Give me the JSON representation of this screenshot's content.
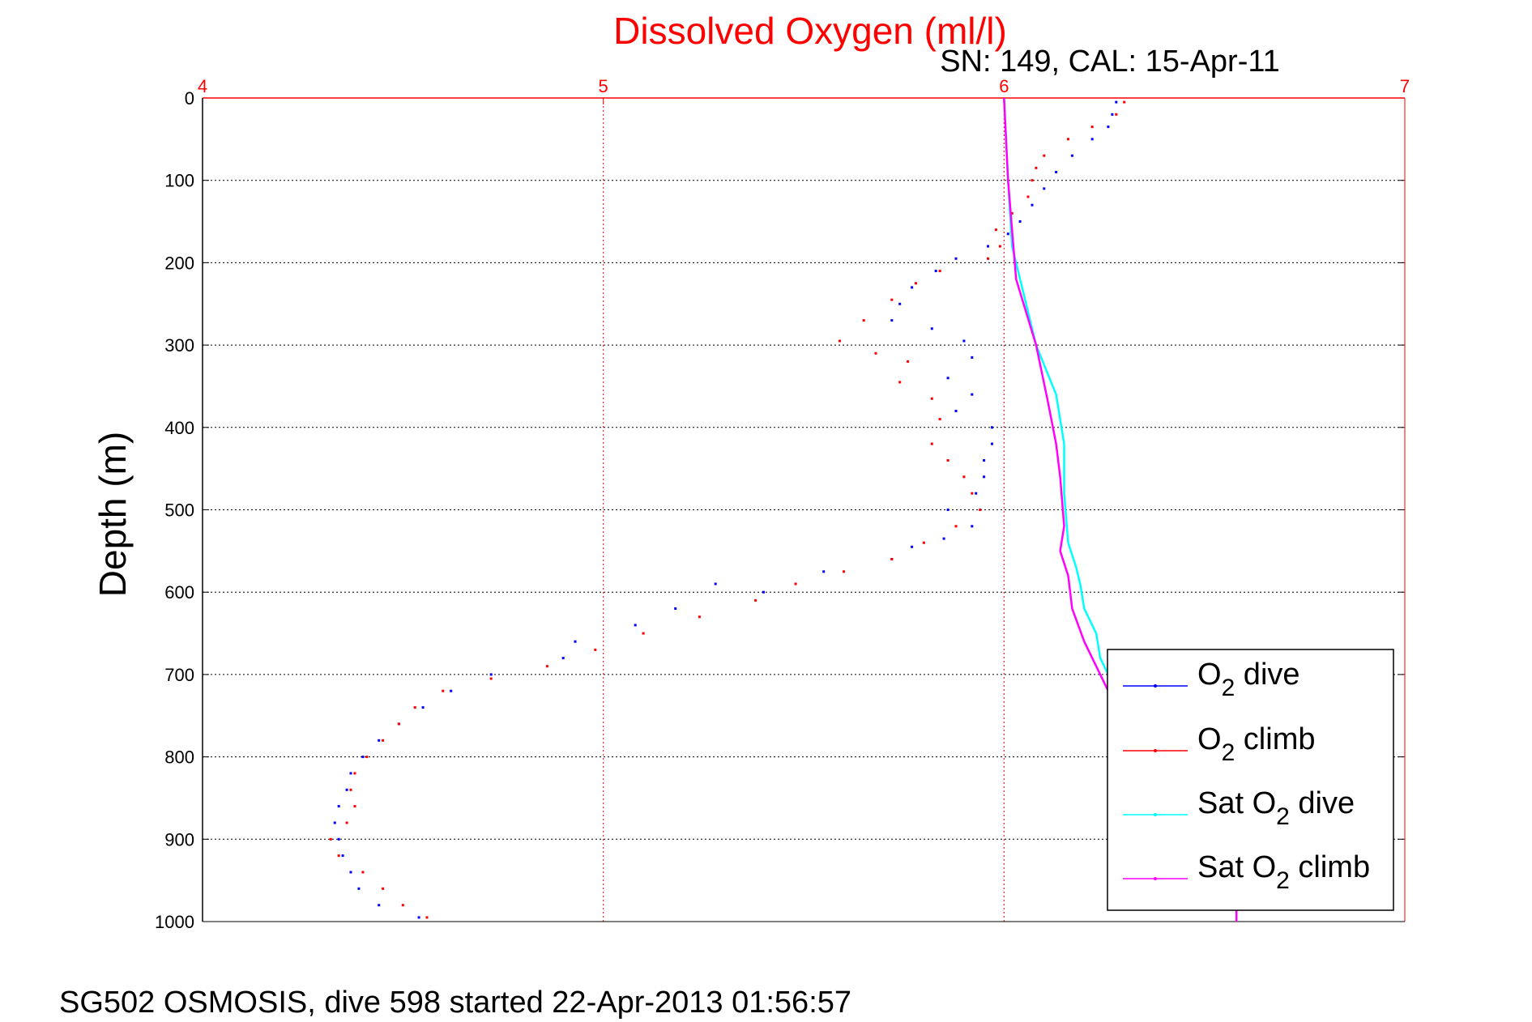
{
  "chart_data": {
    "type": "scatter",
    "title": "Dissolved Oxygen (ml/l)",
    "subtitle": "SN: 149, CAL: 15-Apr-11",
    "ylabel": "Depth (m)",
    "xlabel": "",
    "xlim": [
      4,
      7
    ],
    "ylim": [
      0,
      1000
    ],
    "y_reversed": true,
    "x_axis_position": "top",
    "grid": true,
    "legend_position": "bottom-right",
    "x_ticks": [
      "4",
      "5",
      "6",
      "7"
    ],
    "y_ticks": [
      "0",
      "100",
      "200",
      "300",
      "400",
      "500",
      "600",
      "700",
      "800",
      "900",
      "1000"
    ],
    "series": [
      {
        "name_main": "O",
        "name_sub": "2",
        "name_suffix": " dive",
        "color": "#0000ff",
        "style": "points",
        "points": [
          [
            6.28,
            5
          ],
          [
            6.27,
            20
          ],
          [
            6.26,
            35
          ],
          [
            6.22,
            50
          ],
          [
            6.17,
            70
          ],
          [
            6.13,
            90
          ],
          [
            6.1,
            110
          ],
          [
            6.07,
            130
          ],
          [
            6.04,
            150
          ],
          [
            6.01,
            165
          ],
          [
            5.96,
            180
          ],
          [
            5.88,
            195
          ],
          [
            5.83,
            210
          ],
          [
            5.77,
            230
          ],
          [
            5.74,
            250
          ],
          [
            5.72,
            270
          ],
          [
            5.82,
            280
          ],
          [
            5.9,
            295
          ],
          [
            5.92,
            315
          ],
          [
            5.86,
            340
          ],
          [
            5.92,
            360
          ],
          [
            5.88,
            380
          ],
          [
            5.97,
            400
          ],
          [
            5.97,
            420
          ],
          [
            5.95,
            440
          ],
          [
            5.95,
            460
          ],
          [
            5.93,
            480
          ],
          [
            5.86,
            500
          ],
          [
            5.92,
            520
          ],
          [
            5.85,
            535
          ],
          [
            5.77,
            545
          ],
          [
            5.72,
            560
          ],
          [
            5.55,
            575
          ],
          [
            5.28,
            590
          ],
          [
            5.4,
            600
          ],
          [
            5.18,
            620
          ],
          [
            5.08,
            640
          ],
          [
            4.93,
            660
          ],
          [
            4.9,
            680
          ],
          [
            4.72,
            700
          ],
          [
            4.62,
            720
          ],
          [
            4.55,
            740
          ],
          [
            4.49,
            760
          ],
          [
            4.44,
            780
          ],
          [
            4.4,
            800
          ],
          [
            4.37,
            820
          ],
          [
            4.36,
            840
          ],
          [
            4.34,
            860
          ],
          [
            4.33,
            880
          ],
          [
            4.34,
            900
          ],
          [
            4.35,
            920
          ],
          [
            4.37,
            940
          ],
          [
            4.39,
            960
          ],
          [
            4.44,
            980
          ],
          [
            4.54,
            995
          ]
        ]
      },
      {
        "name_main": "O",
        "name_sub": "2",
        "name_suffix": " climb",
        "color": "#ff0000",
        "style": "points",
        "points": [
          [
            6.3,
            5
          ],
          [
            6.28,
            20
          ],
          [
            6.22,
            35
          ],
          [
            6.16,
            50
          ],
          [
            6.1,
            70
          ],
          [
            6.08,
            85
          ],
          [
            6.07,
            100
          ],
          [
            6.06,
            120
          ],
          [
            6.02,
            140
          ],
          [
            5.98,
            160
          ],
          [
            5.99,
            180
          ],
          [
            5.96,
            195
          ],
          [
            5.84,
            210
          ],
          [
            5.78,
            225
          ],
          [
            5.72,
            245
          ],
          [
            5.65,
            270
          ],
          [
            5.59,
            295
          ],
          [
            5.68,
            310
          ],
          [
            5.76,
            320
          ],
          [
            5.74,
            345
          ],
          [
            5.82,
            365
          ],
          [
            5.84,
            390
          ],
          [
            5.82,
            420
          ],
          [
            5.86,
            440
          ],
          [
            5.9,
            460
          ],
          [
            5.92,
            480
          ],
          [
            5.94,
            500
          ],
          [
            5.88,
            520
          ],
          [
            5.8,
            540
          ],
          [
            5.72,
            560
          ],
          [
            5.6,
            575
          ],
          [
            5.48,
            590
          ],
          [
            5.38,
            610
          ],
          [
            5.24,
            630
          ],
          [
            5.1,
            650
          ],
          [
            4.98,
            670
          ],
          [
            4.86,
            690
          ],
          [
            4.72,
            705
          ],
          [
            4.6,
            720
          ],
          [
            4.53,
            740
          ],
          [
            4.49,
            760
          ],
          [
            4.45,
            780
          ],
          [
            4.41,
            800
          ],
          [
            4.38,
            820
          ],
          [
            4.37,
            840
          ],
          [
            4.38,
            860
          ],
          [
            4.36,
            880
          ],
          [
            4.32,
            900
          ],
          [
            4.34,
            920
          ],
          [
            4.4,
            940
          ],
          [
            4.45,
            960
          ],
          [
            4.5,
            980
          ],
          [
            4.56,
            995
          ]
        ]
      },
      {
        "name_main": "Sat O",
        "name_sub": "2",
        "name_suffix": " dive",
        "color": "#00ffff",
        "style": "line",
        "points": [
          [
            6.0,
            0
          ],
          [
            6.01,
            100
          ],
          [
            6.02,
            180
          ],
          [
            6.04,
            220
          ],
          [
            6.08,
            300
          ],
          [
            6.13,
            360
          ],
          [
            6.15,
            420
          ],
          [
            6.15,
            480
          ],
          [
            6.16,
            540
          ],
          [
            6.18,
            570
          ],
          [
            6.19,
            590
          ],
          [
            6.2,
            620
          ],
          [
            6.23,
            650
          ],
          [
            6.24,
            680
          ],
          [
            6.26,
            700
          ],
          [
            6.27,
            720
          ]
        ]
      },
      {
        "name_main": "Sat O",
        "name_sub": "2",
        "name_suffix": " climb",
        "color": "#ff00ff",
        "style": "line",
        "points": [
          [
            6.0,
            0
          ],
          [
            6.01,
            100
          ],
          [
            6.02,
            160
          ],
          [
            6.03,
            220
          ],
          [
            6.08,
            300
          ],
          [
            6.11,
            370
          ],
          [
            6.13,
            420
          ],
          [
            6.14,
            460
          ],
          [
            6.15,
            520
          ],
          [
            6.14,
            550
          ],
          [
            6.16,
            580
          ],
          [
            6.17,
            620
          ],
          [
            6.2,
            660
          ],
          [
            6.23,
            690
          ],
          [
            6.26,
            720
          ],
          [
            6.4,
            800
          ],
          [
            6.5,
            880
          ],
          [
            6.58,
            950
          ],
          [
            6.58,
            1000
          ]
        ]
      }
    ]
  },
  "footer": "SG502 OSMOSIS, dive 598 started 22-Apr-2013 01:56:57"
}
